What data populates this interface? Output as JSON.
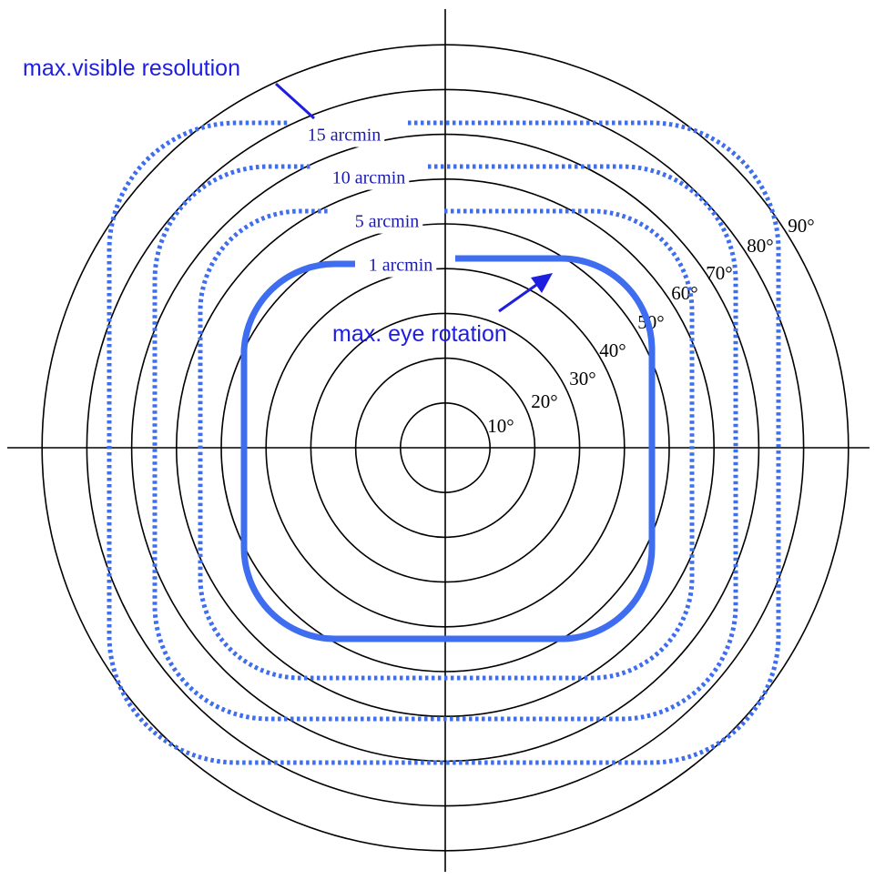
{
  "ring_labels": [
    "10°",
    "20°",
    "30°",
    "40°",
    "50°",
    "60°",
    "70°",
    "80°",
    "90°"
  ],
  "contours": [
    "15 arcmin",
    "10 arcmin",
    "5 arcmin",
    "1 arcmin"
  ],
  "annotations": {
    "resolution": "max.visible resolution",
    "rotation": "max. eye rotation"
  }
}
